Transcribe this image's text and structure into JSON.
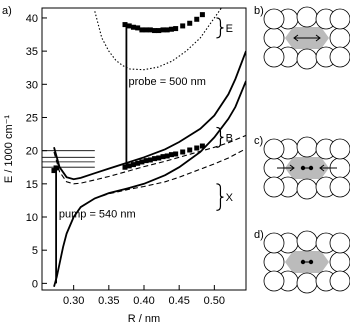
{
  "chart_data": {
    "type": "line",
    "panel_label": "a)",
    "xlabel": "R / nm",
    "ylabel": "E / 1000 cm⁻¹",
    "xlim": [
      0.255,
      0.545
    ],
    "ylim": [
      -1,
      41.5
    ],
    "xticks": [
      {
        "value": 0.3,
        "label": "0.30"
      },
      0.35,
      {
        "value": 0.4,
        "label": "0.40"
      },
      0.45,
      {
        "value": 0.5,
        "label": "0.50"
      }
    ],
    "yticks": [
      0,
      5,
      10,
      15,
      20,
      25,
      30,
      35,
      40
    ],
    "series": [
      {
        "style": "solid",
        "color": "#000000",
        "x": [
          0.272,
          0.276,
          0.28,
          0.285,
          0.29,
          0.3,
          0.31,
          0.33,
          0.35,
          0.38,
          0.4,
          0.43,
          0.45,
          0.48,
          0.5,
          0.52,
          0.53,
          0.545
        ],
        "values": [
          -0.5,
          1,
          3,
          5.5,
          7.5,
          10,
          11.5,
          12.8,
          13.6,
          14.4,
          15,
          16.3,
          17.5,
          19.8,
          22,
          24.8,
          26.6,
          30.5
        ]
      },
      {
        "style": "dashed",
        "color": "#000000",
        "x": [
          0.31,
          0.33,
          0.35,
          0.38,
          0.4,
          0.43,
          0.45,
          0.48,
          0.5,
          0.52,
          0.545
        ],
        "values": [
          11.5,
          12.8,
          13.5,
          14.2,
          14.6,
          15.3,
          16,
          17.2,
          18,
          18.9,
          20.3
        ]
      },
      {
        "style": "solid",
        "color": "#000000",
        "x": [
          0.272,
          0.28,
          0.29,
          0.3,
          0.31,
          0.33,
          0.35,
          0.38,
          0.4,
          0.43,
          0.45,
          0.48,
          0.5,
          0.52,
          0.53,
          0.545
        ],
        "values": [
          20.5,
          17.5,
          16,
          15.7,
          15.9,
          16.6,
          17.3,
          18.3,
          19,
          20.2,
          21.3,
          23.3,
          25.3,
          28.5,
          30.8,
          35
        ]
      },
      {
        "style": "dashed",
        "color": "#000000",
        "x": [
          0.272,
          0.28,
          0.29,
          0.3,
          0.31,
          0.33,
          0.35,
          0.38,
          0.4,
          0.43,
          0.45,
          0.48,
          0.5,
          0.52,
          0.545
        ],
        "values": [
          19.8,
          16.8,
          15.3,
          15,
          15.1,
          15.6,
          16.1,
          17,
          17.6,
          18.4,
          19,
          19.9,
          20.5,
          21.2,
          22.3
        ]
      },
      {
        "style": "dotted",
        "color": "#000000",
        "x": [
          0.33,
          0.34,
          0.35,
          0.36,
          0.37,
          0.38,
          0.4,
          0.42,
          0.44,
          0.46,
          0.48,
          0.5,
          0.51
        ],
        "values": [
          41,
          37,
          35,
          33.6,
          32.8,
          32.3,
          32.2,
          32.6,
          33.5,
          35,
          37,
          40,
          41.5
        ]
      },
      {
        "style": "markers",
        "color": "#000000",
        "x": [
          0.373,
          0.379,
          0.385,
          0.391,
          0.397,
          0.403,
          0.409,
          0.415,
          0.421,
          0.427,
          0.433,
          0.439,
          0.445,
          0.455,
          0.465,
          0.475,
          0.483
        ],
        "values": [
          39,
          38.8,
          38.6,
          38.5,
          38.2,
          38.2,
          38.2,
          38.1,
          38.1,
          38.2,
          38.2,
          38.3,
          38.4,
          38.8,
          39.2,
          39.8,
          40.5
        ]
      },
      {
        "style": "markers",
        "color": "#000000",
        "x": [
          0.373,
          0.379,
          0.385,
          0.391,
          0.397,
          0.403,
          0.409,
          0.415,
          0.421,
          0.427,
          0.433,
          0.439,
          0.445,
          0.455,
          0.465,
          0.475,
          0.483
        ],
        "values": [
          17.5,
          17.7,
          17.9,
          18.1,
          18.3,
          18.5,
          18.6,
          18.8,
          18.9,
          19.1,
          19.2,
          19.4,
          19.5,
          19.8,
          20.1,
          20.4,
          20.7
        ]
      },
      {
        "style": "markers",
        "color": "#000000",
        "x": [
          0.272,
          0.275
        ],
        "values": [
          17,
          17.4
        ]
      },
      {
        "style": "solid",
        "color": "#000000",
        "x": [
          0.275,
          0.275
        ],
        "values": [
          0,
          17.4
        ]
      },
      {
        "style": "solid",
        "color": "#000000",
        "x": [
          0.375,
          0.375
        ],
        "values": [
          17.5,
          38.9
        ]
      },
      {
        "style": "thin",
        "color": "#000000",
        "x": [
          0.255,
          0.33
        ],
        "values": [
          20,
          20
        ]
      },
      {
        "style": "thin",
        "color": "#000000",
        "x": [
          0.255,
          0.33
        ],
        "values": [
          19,
          19
        ]
      },
      {
        "style": "thin",
        "color": "#000000",
        "x": [
          0.255,
          0.33
        ],
        "values": [
          18.3,
          18.3
        ]
      },
      {
        "style": "thin",
        "color": "#000000",
        "x": [
          0.255,
          0.33
        ],
        "values": [
          17.5,
          17.5
        ]
      }
    ],
    "annotations": [
      "probe = 500 nm",
      "pump = 540 nm",
      "E",
      "B",
      "X"
    ],
    "panels": [
      "b)",
      "c)",
      "d)"
    ]
  }
}
